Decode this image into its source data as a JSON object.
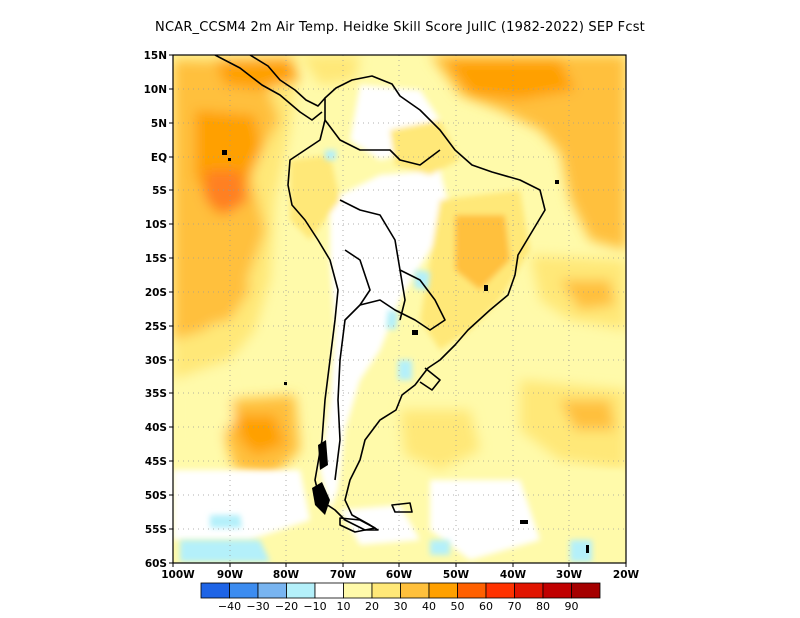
{
  "title": "NCAR_CCSM4  2m Air Temp. Heidke Skill Score JulIC (1982-2022) SEP Fcst",
  "map": {
    "lat_labels": [
      "15N",
      "10N",
      "5N",
      "EQ",
      "5S",
      "10S",
      "15S",
      "20S",
      "25S",
      "30S",
      "35S",
      "40S",
      "45S",
      "50S",
      "55S",
      "60S"
    ],
    "lon_labels": [
      "100W",
      "90W",
      "80W",
      "70W",
      "60W",
      "50W",
      "40W",
      "30W",
      "20W"
    ],
    "lat_range": [
      15,
      -60
    ],
    "lon_range": [
      -100,
      -20
    ],
    "grid": "dotted"
  },
  "legend": {
    "labels": [
      "-40",
      "-30",
      "-20",
      "-10",
      "10",
      "20",
      "30",
      "40",
      "50",
      "60",
      "70",
      "80",
      "90"
    ],
    "colors": [
      "#1e64e6",
      "#3c8cf0",
      "#78b4f0",
      "#b4f0fa",
      "#ffffff",
      "#fffaaa",
      "#ffe878",
      "#ffc03c",
      "#ffa000",
      "#ff6000",
      "#ff3200",
      "#e11400",
      "#c00000",
      "#a50000"
    ]
  }
}
